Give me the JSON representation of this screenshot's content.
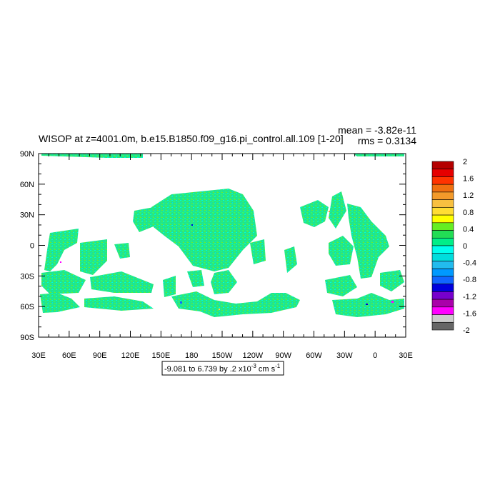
{
  "chart_data": {
    "type": "heatmap",
    "title": "WISOP at z=4001.0m, b.e15.B1850.f09_g16.pi_control.all.109 [1-20]",
    "stats": {
      "mean": "mean = -3.82e-11",
      "rms": "rms = 0.3134"
    },
    "x_tick_labels": [
      "30E",
      "60E",
      "90E",
      "120E",
      "150E",
      "180",
      "150W",
      "120W",
      "90W",
      "60W",
      "30W",
      "0",
      "30E"
    ],
    "y_tick_labels": [
      "90N",
      "60N",
      "30N",
      "0",
      "30S",
      "60S",
      "90S"
    ],
    "xlim": [
      30,
      390
    ],
    "ylim": [
      -90,
      90
    ],
    "range_note": {
      "text": "-9.081 to 6.739 by .2 x10",
      "exp": "-3",
      "unit": " cm s",
      "unit_exp": "-1"
    },
    "colorbar": {
      "labels": [
        "2",
        "1.6",
        "1.2",
        "0.8",
        "0.4",
        "0",
        "-0.4",
        "-0.8",
        "-1.2",
        "-1.6",
        "-2"
      ],
      "colors": [
        "#b40000",
        "#e60000",
        "#ff3300",
        "#f07010",
        "#f39a2a",
        "#f8c040",
        "#ffdd33",
        "#ffff00",
        "#66ee22",
        "#22dd55",
        "#00ee88",
        "#00ffee",
        "#00dddd",
        "#22bbee",
        "#0099ff",
        "#1166ff",
        "#0000dd",
        "#7700cc",
        "#aa00aa",
        "#ff00ff",
        "#cccccc",
        "#666666"
      ]
    }
  }
}
